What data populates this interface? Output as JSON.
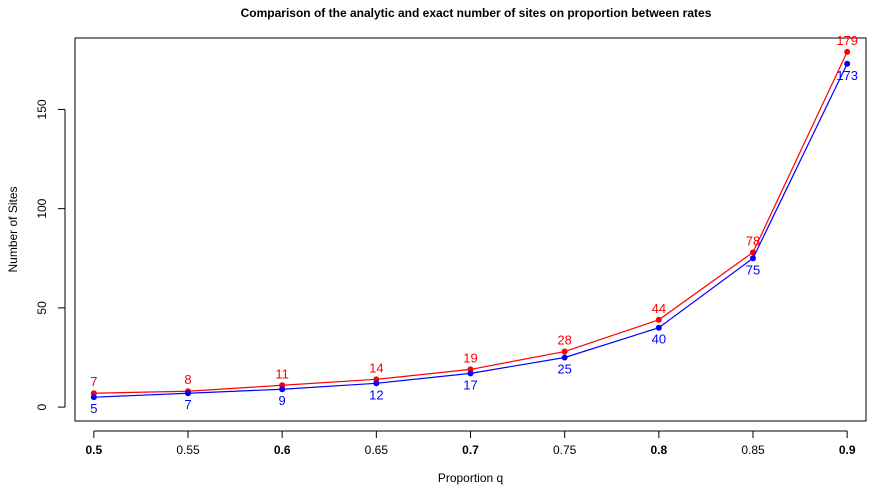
{
  "chart_data": {
    "type": "line",
    "title": "Comparison of the analytic and exact number of sites on proportion between rates",
    "xlabel": "Proportion q",
    "ylabel": "Number of Sites",
    "x": [
      0.5,
      0.55,
      0.6,
      0.65,
      0.7,
      0.75,
      0.8,
      0.85,
      0.9
    ],
    "x_tick_labels": [
      "0.5",
      "0.55",
      "0.6",
      "0.65",
      "0.7",
      "0.75",
      "0.8",
      "0.85",
      "0.9"
    ],
    "x_tick_bold": [
      true,
      false,
      true,
      false,
      true,
      false,
      true,
      false,
      true
    ],
    "y_ticks": [
      0,
      50,
      100,
      150
    ],
    "y_tick_labels": [
      "0",
      "50",
      "100",
      "150"
    ],
    "xlim": [
      0.49,
      0.91
    ],
    "ylim": [
      -7,
      186
    ],
    "grid": false,
    "series": [
      {
        "color": "#ff0000",
        "label_position": "above",
        "values": [
          7,
          8,
          11,
          14,
          19,
          28,
          44,
          78,
          179
        ],
        "labels": [
          "7",
          "8",
          "11",
          "14",
          "19",
          "28",
          "44",
          "78",
          "179"
        ]
      },
      {
        "color": "#0000ff",
        "label_position": "below",
        "values": [
          5,
          7,
          9,
          12,
          17,
          25,
          40,
          75,
          173
        ],
        "labels": [
          "5",
          "7",
          "9",
          "12",
          "17",
          "25",
          "40",
          "75",
          "173"
        ]
      }
    ]
  }
}
